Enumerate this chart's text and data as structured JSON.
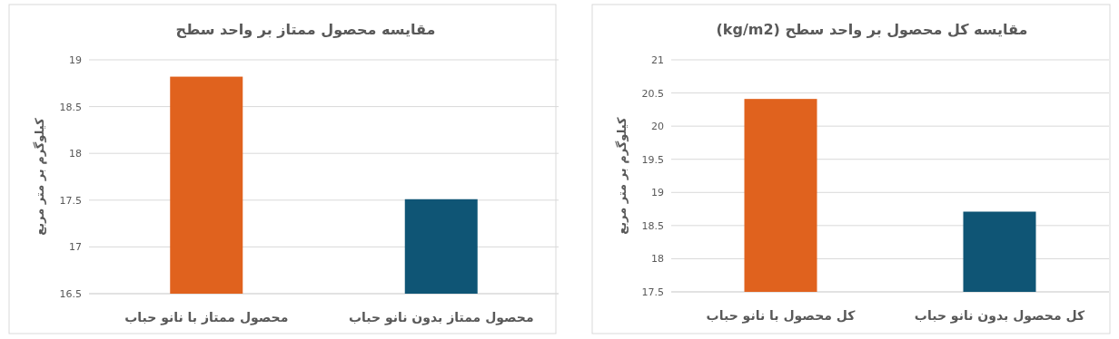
{
  "chart_data": [
    {
      "type": "bar",
      "title": "مقایسه محصول ممتاز بر واحد سطح",
      "ylabel": "کیلوگرم بر متر مربع",
      "categories": [
        "محصول ممتاز با نانو حباب",
        "محصول ممتاز بدون نانو حباب"
      ],
      "values": [
        18.82,
        17.51
      ],
      "colors": [
        "#e0621e",
        "#0f5575"
      ],
      "ylim": [
        16.5,
        19
      ],
      "yticks": [
        16.5,
        17,
        17.5,
        18,
        18.5,
        19
      ],
      "grid": "y"
    },
    {
      "type": "bar",
      "title": "مقایسه کل محصول بر واحد سطح (kg/m2)",
      "ylabel": "کیلوگرم بر متر مربع",
      "categories": [
        "کل محصول با نانو حباب",
        "کل محصول بدون نانو حباب"
      ],
      "values": [
        20.41,
        18.71
      ],
      "colors": [
        "#e0621e",
        "#0f5575"
      ],
      "ylim": [
        17.5,
        21
      ],
      "yticks": [
        17.5,
        18,
        18.5,
        19,
        19.5,
        20,
        20.5,
        21
      ],
      "grid": "y"
    }
  ]
}
